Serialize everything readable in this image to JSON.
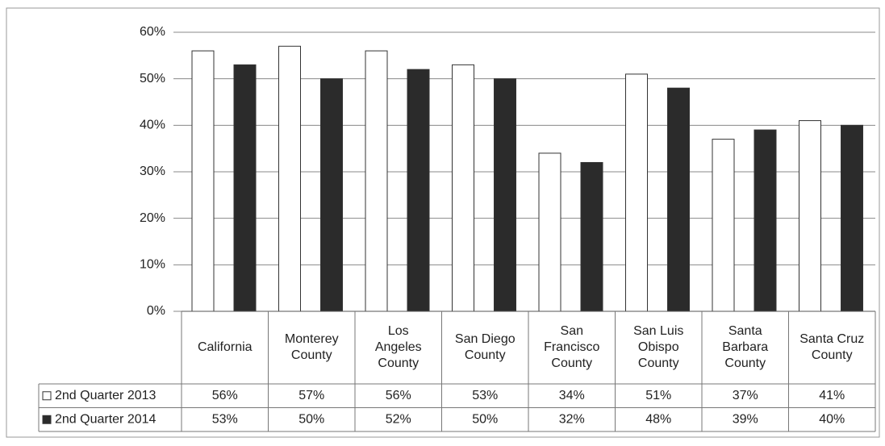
{
  "chart_data": {
    "type": "bar",
    "categories": [
      "California",
      "Monterey County",
      "Los Angeles County",
      "San Diego County",
      "San Francisco County",
      "San Luis Obispo County",
      "Santa Barbara County",
      "Santa Cruz County"
    ],
    "series": [
      {
        "name": "2nd Quarter 2013",
        "color": "#ffffff",
        "values": [
          56,
          57,
          56,
          53,
          34,
          51,
          37,
          41
        ],
        "value_labels": [
          "56%",
          "57%",
          "56%",
          "53%",
          "34%",
          "51%",
          "37%",
          "41%"
        ]
      },
      {
        "name": "2nd Quarter 2014",
        "color": "#2b2b2b",
        "values": [
          53,
          50,
          52,
          50,
          32,
          48,
          39,
          40
        ],
        "value_labels": [
          "53%",
          "50%",
          "52%",
          "50%",
          "32%",
          "48%",
          "39%",
          "40%"
        ]
      }
    ],
    "ylim": [
      0,
      60
    ],
    "yticks": [
      {
        "value": 0,
        "label": "0%"
      },
      {
        "value": 10,
        "label": "10%"
      },
      {
        "value": 20,
        "label": "20%"
      },
      {
        "value": 30,
        "label": "30%"
      },
      {
        "value": 40,
        "label": "40%"
      },
      {
        "value": 50,
        "label": "50%"
      },
      {
        "value": 60,
        "label": "60%"
      }
    ],
    "grid": true
  }
}
